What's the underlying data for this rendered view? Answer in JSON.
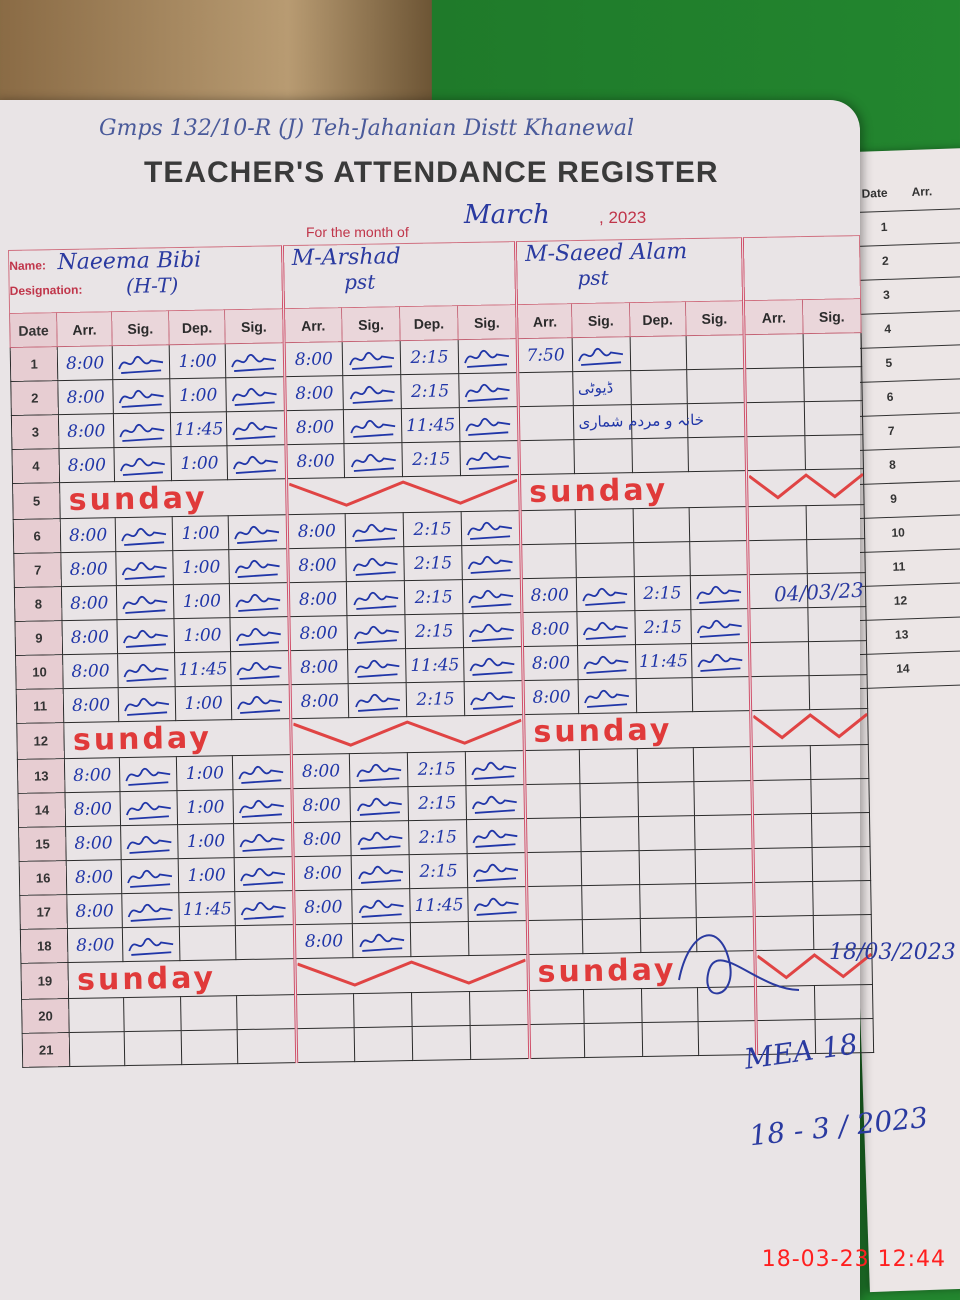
{
  "school_line": "Gmps 132/10-R (J) Teh-Jahanian Distt Khanewal",
  "title": "TEACHER'S ATTENDANCE REGISTER",
  "month_label": "For the month of",
  "month": "March",
  "year": ", 2023",
  "labels": {
    "name": "Name:",
    "designation": "Designation:"
  },
  "columns": {
    "date": "Date",
    "arr": "Arr.",
    "sig": "Sig.",
    "dep": "Dep."
  },
  "sunday_text": "sunday",
  "teachers": [
    {
      "name": "Naeema Bibi",
      "designation": "(H-T)"
    },
    {
      "name": "M-Arshad",
      "designation": "pst"
    },
    {
      "name": "M-Saeed Alam",
      "designation": "pst"
    },
    {
      "name": "",
      "designation": ""
    }
  ],
  "rows": [
    {
      "date": "1",
      "t": [
        [
          "8:00",
          "1:00"
        ],
        [
          "8:00",
          "2:15"
        ],
        [
          "7:50",
          ""
        ]
      ]
    },
    {
      "date": "2",
      "t": [
        [
          "8:00",
          "1:00"
        ],
        [
          "8:00",
          "2:15"
        ],
        [
          "",
          ""
        ]
      ],
      "note": "ڈیوٹی"
    },
    {
      "date": "3",
      "t": [
        [
          "8:00",
          "11:45"
        ],
        [
          "8:00",
          "11:45"
        ],
        [
          "",
          ""
        ]
      ],
      "note": "خانہ و مردم شماری"
    },
    {
      "date": "4",
      "t": [
        [
          "8:00",
          "1:00"
        ],
        [
          "8:00",
          "2:15"
        ],
        [
          "",
          ""
        ]
      ]
    },
    {
      "date": "5",
      "sunday": true
    },
    {
      "date": "6",
      "t": [
        [
          "8:00",
          "1:00"
        ],
        [
          "8:00",
          "2:15"
        ],
        [
          "",
          ""
        ]
      ]
    },
    {
      "date": "7",
      "t": [
        [
          "8:00",
          "1:00"
        ],
        [
          "8:00",
          "2:15"
        ],
        [
          "",
          ""
        ]
      ]
    },
    {
      "date": "8",
      "t": [
        [
          "8:00",
          "1:00"
        ],
        [
          "8:00",
          "2:15"
        ],
        [
          "8:00",
          "2:15"
        ]
      ]
    },
    {
      "date": "9",
      "t": [
        [
          "8:00",
          "1:00"
        ],
        [
          "8:00",
          "2:15"
        ],
        [
          "8:00",
          "2:15"
        ]
      ]
    },
    {
      "date": "10",
      "t": [
        [
          "8:00",
          "11:45"
        ],
        [
          "8:00",
          "11:45"
        ],
        [
          "8:00",
          "11:45"
        ]
      ]
    },
    {
      "date": "11",
      "t": [
        [
          "8:00",
          "1:00"
        ],
        [
          "8:00",
          "2:15"
        ],
        [
          "8:00",
          ""
        ]
      ]
    },
    {
      "date": "12",
      "sunday": true
    },
    {
      "date": "13",
      "t": [
        [
          "8:00",
          "1:00"
        ],
        [
          "8:00",
          "2:15"
        ],
        [
          "",
          ""
        ]
      ]
    },
    {
      "date": "14",
      "t": [
        [
          "8:00",
          "1:00"
        ],
        [
          "8:00",
          "2:15"
        ],
        [
          "",
          ""
        ]
      ]
    },
    {
      "date": "15",
      "t": [
        [
          "8:00",
          "1:00"
        ],
        [
          "8:00",
          "2:15"
        ],
        [
          "",
          ""
        ]
      ]
    },
    {
      "date": "16",
      "t": [
        [
          "8:00",
          "1:00"
        ],
        [
          "8:00",
          "2:15"
        ],
        [
          "",
          ""
        ]
      ]
    },
    {
      "date": "17",
      "t": [
        [
          "8:00",
          "11:45"
        ],
        [
          "8:00",
          "11:45"
        ],
        [
          "",
          ""
        ]
      ]
    },
    {
      "date": "18",
      "t": [
        [
          "8:00",
          ""
        ],
        [
          "8:00",
          ""
        ],
        [
          "",
          ""
        ]
      ]
    },
    {
      "date": "19",
      "sunday": true
    },
    {
      "date": "20",
      "t": [
        [
          "",
          ""
        ],
        [
          "",
          ""
        ],
        [
          "",
          ""
        ]
      ]
    },
    {
      "date": "21",
      "t": [
        [
          "",
          ""
        ],
        [
          "",
          ""
        ],
        [
          "",
          ""
        ]
      ]
    }
  ],
  "annotations": {
    "visit_date_1": "04/03/23",
    "visit_date_2": "18/03/2023",
    "initials": "MEA 18",
    "date_fraction": "18 - 3 / 2023"
  },
  "right_page": {
    "date": "Date",
    "arr": "Arr.",
    "numbers": [
      "1",
      "2",
      "3",
      "4",
      "5",
      "6",
      "7",
      "8",
      "9",
      "10",
      "11",
      "12",
      "13",
      "14"
    ]
  },
  "timestamp": "18-03-23  12:44",
  "colors": {
    "ink_blue": "#2036a8",
    "sunday_red": "#e03a3a",
    "print_pink": "#c0354a"
  }
}
